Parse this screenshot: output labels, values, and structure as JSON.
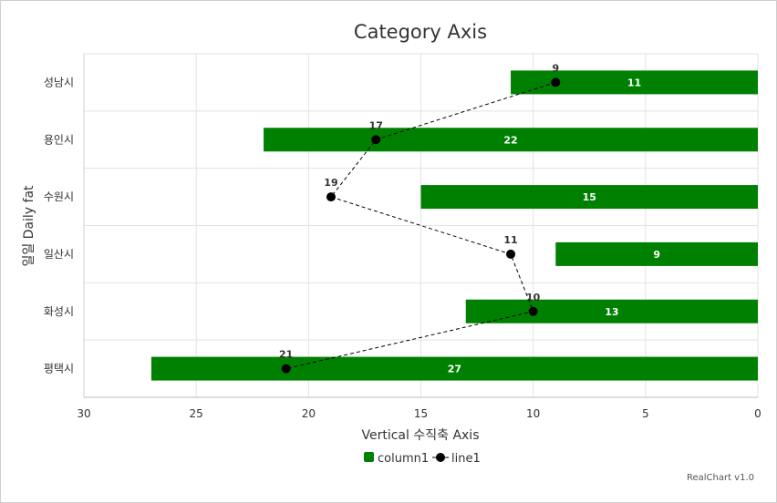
{
  "chart_data": {
    "type": "bar",
    "orientation": "horizontal",
    "title": "Category Axis",
    "xlabel": "Vertical 수직축 Axis",
    "ylabel": "일일 Daily fat",
    "categories": [
      "성남시",
      "용인시",
      "수원시",
      "일산시",
      "화성시",
      "평택시"
    ],
    "value_axis": {
      "min": 0,
      "max": 30,
      "reversed": true,
      "ticks": [
        30,
        25,
        20,
        15,
        10,
        5,
        0
      ]
    },
    "grid": true,
    "legend_position": "bottom",
    "series": [
      {
        "name": "column1",
        "type": "bar",
        "color": "#008000",
        "values": [
          11,
          22,
          15,
          9,
          13,
          27
        ]
      },
      {
        "name": "line1",
        "type": "line",
        "color": "#000000",
        "line_style": "dashed",
        "values": [
          9,
          17,
          19,
          11,
          10,
          21
        ]
      }
    ]
  },
  "credit": "RealChart v1.0"
}
